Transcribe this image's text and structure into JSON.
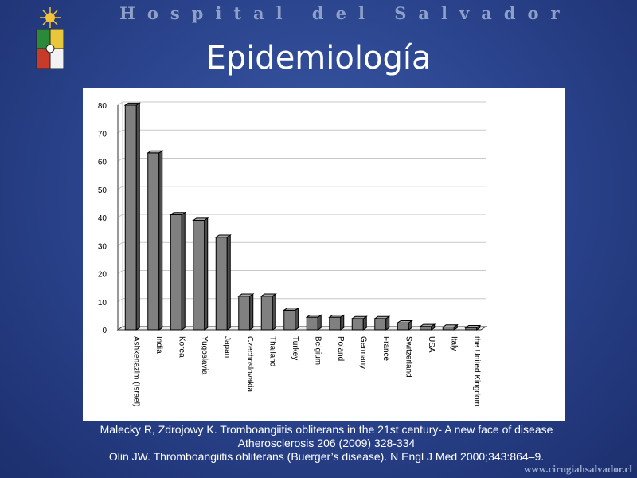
{
  "slide": {
    "header_title": "Hospital del Salvador",
    "title": "Epidemiología",
    "website": "www.cirugiahsalvador.cl"
  },
  "citations": [
    "Malecky R, Zdrojowy K. Tromboangiitis obliterans in the 21st century- A new face of disease",
    "Atherosclerosis 206 (2009) 328-334",
    "Olin JW. Thromboangiitis obliterans (Buerger’s disease). N Engl J Med 2000;343:864–9."
  ],
  "chart_data": {
    "type": "bar",
    "categories": [
      "Ashkenazim (Israel)",
      "India",
      "Korea",
      "Yugoslavia",
      "Japan",
      "Czechoslovakia",
      "Thailand",
      "Turkey",
      "Belgium",
      "Poland",
      "Germany",
      "France",
      "Switzerland",
      "USA",
      "Italy",
      "the United Kingdom"
    ],
    "values": [
      80,
      63,
      41,
      39,
      33,
      12,
      12,
      7,
      4.5,
      4.5,
      4,
      4,
      2.5,
      1.2,
      1,
      0.8
    ],
    "title": "",
    "xlabel": "",
    "ylabel": "",
    "ylim": [
      0,
      80
    ],
    "yticks": [
      0,
      10,
      20,
      30,
      40,
      50,
      60,
      70,
      80
    ],
    "grid": true,
    "style": "3d",
    "colors": {
      "bar_front": "#808080",
      "bar_side": "#4d4d4d",
      "bar_top": "#a8a8a8",
      "grid": "#c8c8c8",
      "axis": "#333333"
    }
  },
  "logo": {
    "icons": [
      "sun-star-icon",
      "shield-crest-icon"
    ]
  }
}
